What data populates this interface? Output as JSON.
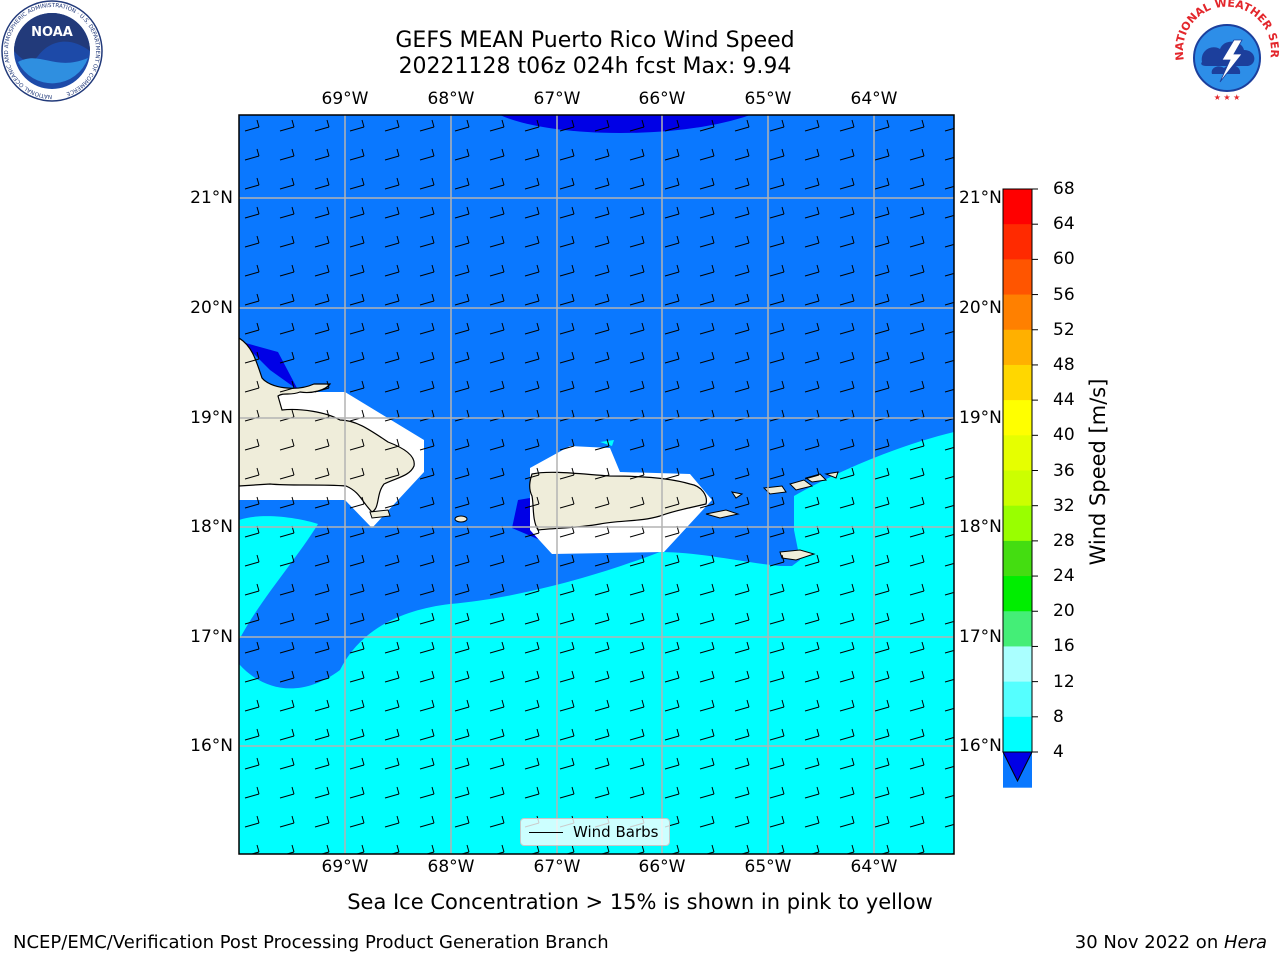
{
  "title": {
    "line1": "GEFS MEAN Puerto Rico Wind Speed",
    "line2": "20221128 t06z 024h fcst   Max: 9.94"
  },
  "map": {
    "longitude_labels": [
      "69°W",
      "68°W",
      "67°W",
      "66°W",
      "65°W",
      "64°W"
    ],
    "latitude_labels": [
      "21°N",
      "20°N",
      "19°N",
      "18°N",
      "17°N",
      "16°N"
    ],
    "colors": {
      "band_4_8": "#0a78ff",
      "band_8_12": "#00ffff",
      "below_4": "#0000e6",
      "land": "#efedda",
      "gridline": "#b3b3b3"
    }
  },
  "legend": {
    "label": "Wind Barbs"
  },
  "colorbar": {
    "label": "Wind Speed [m/s]",
    "ticks": [
      "68",
      "64",
      "60",
      "56",
      "52",
      "48",
      "44",
      "40",
      "36",
      "32",
      "28",
      "24",
      "20",
      "16",
      "12",
      "8",
      "4"
    ],
    "colors": [
      "#ff0000",
      "#ff2a00",
      "#ff5500",
      "#ff8000",
      "#ffb000",
      "#ffd700",
      "#ffff00",
      "#e6ff00",
      "#ccff00",
      "#99ff00",
      "#44dd11",
      "#00ee00",
      "#44ee77",
      "#aaffff",
      "#55ffff",
      "#00ffff",
      "#0a78ff"
    ],
    "under_color": "#0000e6"
  },
  "subtitle": "Sea Ice Concentration > 15% is shown in pink to yellow",
  "footer": {
    "left": "NCEP/EMC/Verification Post Processing Product Generation Branch",
    "date": "30 Nov 2022 on ",
    "machine": "Hera"
  },
  "logos": {
    "left": {
      "text": "NOAA",
      "ring": "NATIONAL OCEANIC AND ATMOSPHERIC ADMINISTRATION · U.S. DEPARTMENT OF COMMERCE"
    },
    "right": {
      "ring": "NATIONAL WEATHER SERVICE"
    }
  }
}
